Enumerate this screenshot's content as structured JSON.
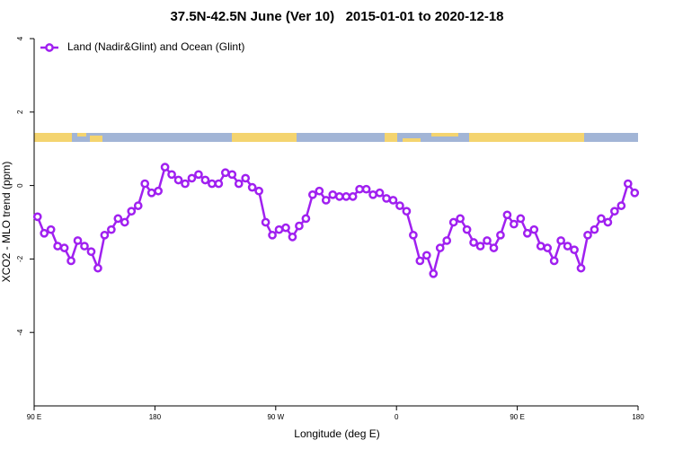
{
  "chart_data": {
    "type": "line",
    "title": "37.5N-42.5N June (Ver 10)   2015-01-01 to 2020-12-18",
    "xlabel": "Longitude (deg E)",
    "ylabel": "XCO2 - MLO trend (ppm)",
    "x": [
      92.5,
      97.5,
      102.5,
      107.5,
      112.5,
      117.5,
      122.5,
      127.5,
      132.5,
      137.5,
      142.5,
      147.5,
      152.5,
      157.5,
      162.5,
      167.5,
      172.5,
      177.5,
      182.5,
      187.5,
      192.5,
      197.5,
      202.5,
      207.5,
      212.5,
      217.5,
      222.5,
      227.5,
      232.5,
      237.5,
      242.5,
      247.5,
      252.5,
      257.5,
      262.5,
      267.5,
      272.5,
      277.5,
      282.5,
      287.5,
      292.5,
      297.5,
      302.5,
      307.5,
      312.5,
      317.5,
      322.5,
      327.5,
      332.5,
      337.5,
      342.5,
      347.5,
      352.5,
      357.5,
      362.5,
      367.5,
      372.5,
      377.5,
      382.5,
      387.5,
      392.5,
      397.5,
      402.5,
      407.5,
      412.5,
      417.5,
      422.5,
      427.5,
      432.5,
      437.5,
      442.5,
      447.5,
      452.5,
      457.5,
      462.5,
      467.5,
      472.5,
      477.5,
      482.5,
      487.5,
      492.5,
      497.5,
      502.5,
      507.5,
      512.5,
      517.5,
      522.5,
      527.5,
      532.5,
      537.5
    ],
    "series": [
      {
        "name": "Land (Nadir&Glint) and Ocean (Glint)",
        "color": "#a020f0",
        "values": [
          -0.85,
          -1.3,
          -1.2,
          -1.65,
          -1.7,
          -2.05,
          -1.5,
          -1.65,
          -1.8,
          -2.25,
          -1.35,
          -1.2,
          -0.9,
          -1.0,
          -0.7,
          -0.55,
          0.05,
          -0.2,
          -0.15,
          0.5,
          0.3,
          0.15,
          0.05,
          0.2,
          0.3,
          0.15,
          0.05,
          0.05,
          0.35,
          0.3,
          0.05,
          0.2,
          -0.05,
          -0.15,
          -1.0,
          -1.35,
          -1.2,
          -1.15,
          -1.4,
          -1.1,
          -0.9,
          -0.25,
          -0.15,
          -0.4,
          -0.25,
          -0.3,
          -0.3,
          -0.3,
          -0.1,
          -0.1,
          -0.25,
          -0.2,
          -0.35,
          -0.4,
          -0.55,
          -0.7,
          -1.35,
          -2.05,
          -1.9,
          -2.4,
          -1.7,
          -1.5,
          -1.0,
          -0.9,
          -1.2,
          -1.55,
          -1.65,
          -1.5,
          -1.7,
          -1.35,
          -0.8,
          -1.05,
          -0.9,
          -1.3,
          -1.2,
          -1.65,
          -1.7,
          -2.05,
          -1.5,
          -1.65,
          -1.75,
          -2.25,
          -1.35,
          -1.2,
          -0.9,
          -1.0,
          -0.7,
          -0.55,
          0.05,
          -0.2
        ]
      }
    ],
    "xlim": [
      90,
      540
    ],
    "xticks": [
      {
        "value": 90,
        "label": "90 E"
      },
      180,
      {
        "value": 270,
        "label": "90 W"
      },
      {
        "value": 360,
        "label": "0"
      },
      {
        "value": 450,
        "label": "90 E"
      },
      {
        "value": 540,
        "label": "180"
      }
    ],
    "ylim": [
      -6,
      4
    ],
    "yticks": [
      -4,
      -2,
      0,
      2,
      4
    ],
    "legend": "top-left"
  }
}
